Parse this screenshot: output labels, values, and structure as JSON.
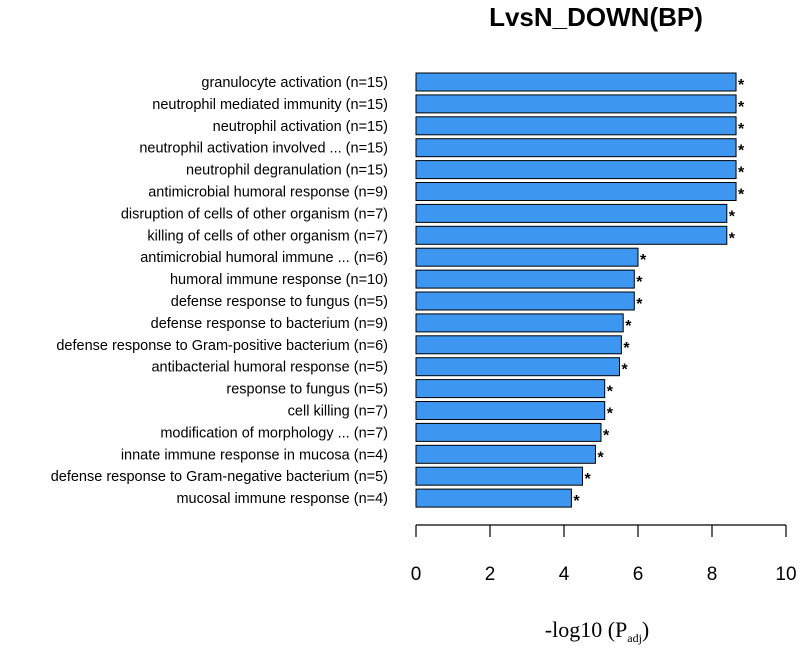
{
  "chart_data": {
    "type": "bar",
    "orientation": "horizontal",
    "title": "LvsN_DOWN(BP)",
    "xlabel_main": "-log10 (P",
    "xlabel_sub": "adj",
    "xlabel_close": ")",
    "xlim": [
      0,
      10
    ],
    "xticks": [
      0,
      2,
      4,
      6,
      8,
      10
    ],
    "bar_color": "#3d96f0",
    "categories": [
      "granulocyte activation (n=15)",
      "neutrophil mediated immunity (n=15)",
      "neutrophil activation (n=15)",
      "neutrophil activation involved ... (n=15)",
      "neutrophil degranulation (n=15)",
      "antimicrobial humoral response (n=9)",
      "disruption of cells of other organism (n=7)",
      "killing of cells of other organism (n=7)",
      "antimicrobial humoral immune ... (n=6)",
      "humoral immune response (n=10)",
      "defense response to fungus (n=5)",
      "defense response to bacterium (n=9)",
      "defense response to Gram-positive bacterium (n=6)",
      "antibacterial humoral response (n=5)",
      "response to fungus (n=5)",
      "cell killing (n=7)",
      "modification of morphology ... (n=7)",
      "innate immune response in mucosa (n=4)",
      "defense response to Gram-negative bacterium (n=5)",
      "mucosal immune response (n=4)"
    ],
    "values": [
      8.65,
      8.65,
      8.65,
      8.65,
      8.65,
      8.65,
      8.4,
      8.4,
      6.0,
      5.9,
      5.9,
      5.6,
      5.55,
      5.5,
      5.1,
      5.1,
      5.0,
      4.85,
      4.5,
      4.2
    ],
    "significance": [
      "*",
      "*",
      "*",
      "*",
      "*",
      "*",
      "*",
      "*",
      "*",
      "*",
      "*",
      "*",
      "*",
      "*",
      "*",
      "*",
      "*",
      "*",
      "*",
      "*"
    ]
  }
}
